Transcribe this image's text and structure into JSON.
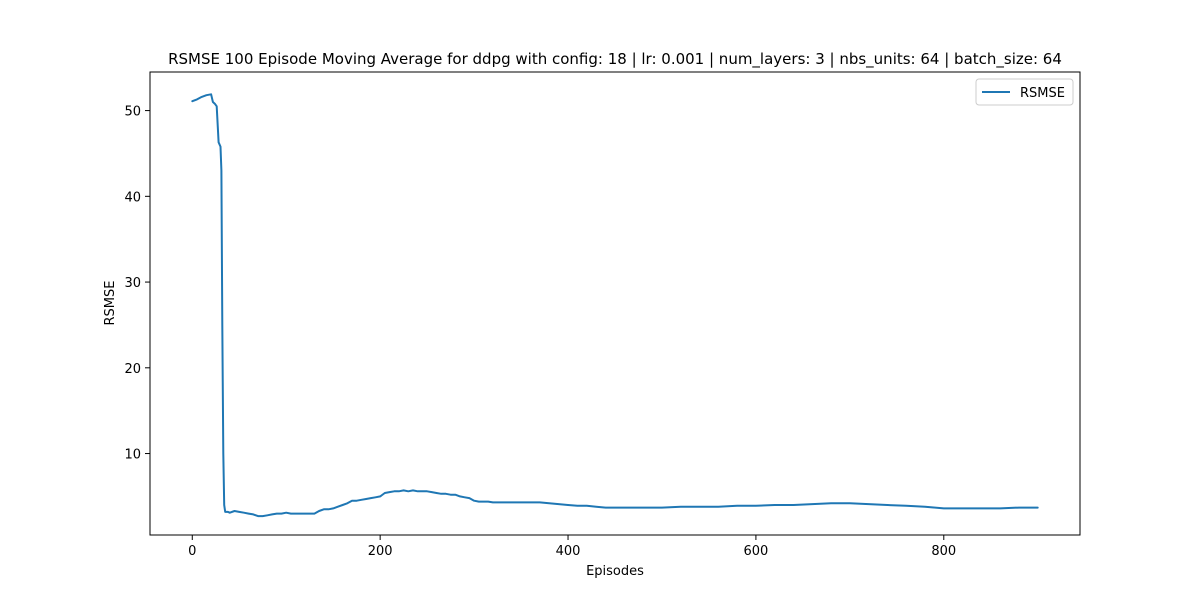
{
  "chart_data": {
    "type": "line",
    "title": "RSMSE 100 Episode Moving Average for ddpg with config: 18 | lr: 0.001 | num_layers: 3 | nbs_units: 64 | batch_size: 64",
    "xlabel": "Episodes",
    "ylabel": "RSMSE",
    "xlim": [
      -45,
      945
    ],
    "ylim": [
      0.5,
      54.5
    ],
    "xticks": [
      0,
      200,
      400,
      600,
      800
    ],
    "yticks": [
      10,
      20,
      30,
      40,
      50
    ],
    "grid": false,
    "legend": {
      "position": "top-right",
      "entries": [
        "RSMSE"
      ]
    },
    "series": [
      {
        "name": "RSMSE",
        "color": "#1f77b4",
        "x": [
          0,
          5,
          10,
          15,
          20,
          22,
          24,
          26,
          28,
          30,
          31,
          32,
          33,
          34,
          35,
          36,
          38,
          40,
          45,
          50,
          55,
          60,
          65,
          70,
          75,
          80,
          85,
          90,
          95,
          100,
          105,
          110,
          115,
          120,
          125,
          130,
          135,
          140,
          145,
          150,
          155,
          160,
          165,
          170,
          175,
          180,
          185,
          190,
          195,
          200,
          205,
          210,
          215,
          220,
          225,
          230,
          235,
          240,
          245,
          250,
          255,
          260,
          265,
          270,
          275,
          280,
          285,
          290,
          295,
          300,
          305,
          310,
          315,
          320,
          325,
          330,
          340,
          350,
          360,
          370,
          380,
          390,
          400,
          410,
          420,
          430,
          440,
          450,
          460,
          470,
          480,
          490,
          500,
          520,
          540,
          560,
          580,
          600,
          620,
          640,
          660,
          680,
          700,
          720,
          740,
          760,
          780,
          800,
          820,
          840,
          860,
          880,
          900
        ],
        "y": [
          51.1,
          51.3,
          51.6,
          51.8,
          51.9,
          51.0,
          50.8,
          50.5,
          46.3,
          45.8,
          43.0,
          25.0,
          10.0,
          4.0,
          3.2,
          3.2,
          3.2,
          3.1,
          3.3,
          3.2,
          3.1,
          3.0,
          2.9,
          2.7,
          2.7,
          2.8,
          2.9,
          3.0,
          3.0,
          3.1,
          3.0,
          3.0,
          3.0,
          3.0,
          3.0,
          3.0,
          3.3,
          3.5,
          3.5,
          3.6,
          3.8,
          4.0,
          4.2,
          4.5,
          4.5,
          4.6,
          4.7,
          4.8,
          4.9,
          5.0,
          5.4,
          5.5,
          5.6,
          5.6,
          5.7,
          5.6,
          5.7,
          5.6,
          5.6,
          5.6,
          5.5,
          5.4,
          5.3,
          5.3,
          5.2,
          5.2,
          5.0,
          4.9,
          4.8,
          4.5,
          4.4,
          4.4,
          4.4,
          4.3,
          4.3,
          4.3,
          4.3,
          4.3,
          4.3,
          4.3,
          4.2,
          4.1,
          4.0,
          3.9,
          3.9,
          3.8,
          3.7,
          3.7,
          3.7,
          3.7,
          3.7,
          3.7,
          3.7,
          3.8,
          3.8,
          3.8,
          3.9,
          3.9,
          4.0,
          4.0,
          4.1,
          4.2,
          4.2,
          4.1,
          4.0,
          3.9,
          3.8,
          3.6,
          3.6,
          3.6,
          3.6,
          3.7,
          3.7
        ]
      }
    ]
  }
}
